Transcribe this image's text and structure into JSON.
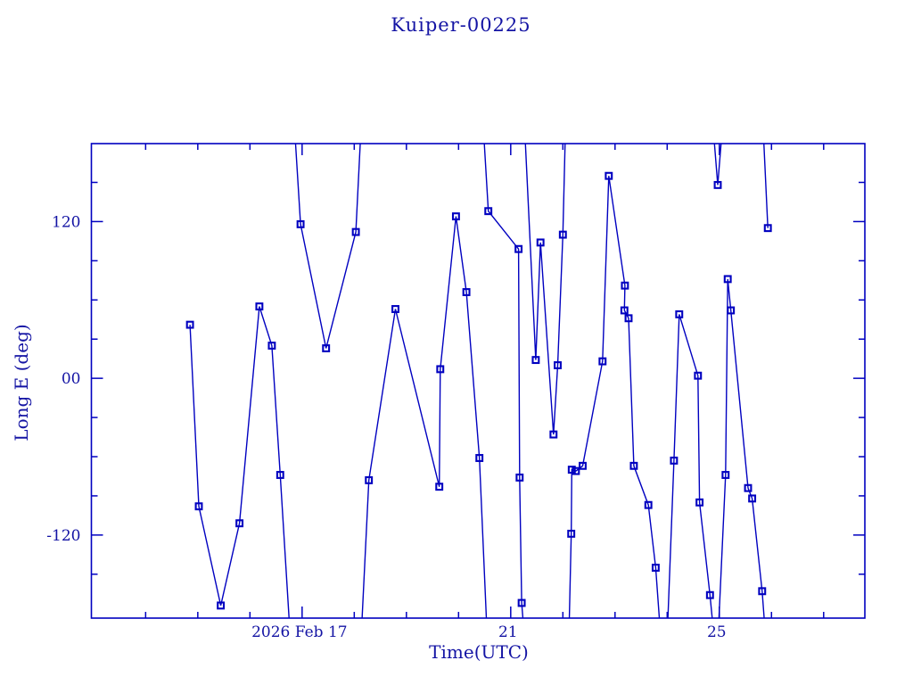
{
  "page": {
    "background": "#ffffff",
    "plot_color": "#0000C0",
    "text_color": "#1414A4"
  },
  "chart_data": {
    "type": "line",
    "title": "Kuiper-00225",
    "xlabel": "Time(UTC)",
    "ylabel": "Long E (deg)",
    "marker": "open-square",
    "grid": false,
    "legend": "none",
    "xlim": [
      12.96,
      27.79
    ],
    "ylim": [
      -183.6,
      179.7
    ],
    "x_unit": "day of 2026 Feb (UTC)",
    "y_unit": "degrees",
    "xticks_major": [
      {
        "day": 17,
        "label": "2026 Feb 17"
      },
      {
        "day": 21,
        "label": "21"
      },
      {
        "day": 25,
        "label": "25"
      }
    ],
    "xticks_minor": [
      14,
      15,
      16,
      18,
      19,
      20,
      22,
      23,
      24,
      26,
      27
    ],
    "yticks_major": [
      {
        "value": 120,
        "label": "120"
      },
      {
        "value": 0,
        "label": "00"
      },
      {
        "value": -120,
        "label": "-120"
      }
    ],
    "yticks_minor": [
      150,
      90,
      60,
      30,
      -30,
      -60,
      -90,
      -150
    ],
    "wrap_note": "points with |value|>180 are off-scale wrap points; lines clip at frame, no marker drawn",
    "series": [
      {
        "name": "segment-1",
        "points": [
          [
            14.85,
            41
          ],
          [
            15.02,
            -98
          ],
          [
            15.44,
            -174
          ],
          [
            15.8,
            -111
          ],
          [
            16.18,
            55
          ],
          [
            16.42,
            25
          ],
          [
            16.58,
            -74
          ],
          [
            16.79,
            -209
          ]
        ]
      },
      {
        "name": "segment-2",
        "points": [
          [
            16.83,
            208
          ],
          [
            16.97,
            118
          ],
          [
            17.46,
            23
          ],
          [
            18.03,
            112
          ],
          [
            18.15,
            208
          ]
        ]
      },
      {
        "name": "segment-3",
        "points": [
          [
            18.11,
            -216
          ],
          [
            18.28,
            -78
          ],
          [
            18.79,
            53
          ],
          [
            19.63,
            -83
          ],
          [
            19.65,
            7
          ],
          [
            19.95,
            124
          ],
          [
            20.15,
            66
          ],
          [
            20.4,
            -61
          ],
          [
            20.56,
            -209
          ]
        ]
      },
      {
        "name": "segment-4",
        "points": [
          [
            20.44,
            215
          ],
          [
            20.57,
            128
          ],
          [
            21.15,
            99
          ],
          [
            21.17,
            -76
          ],
          [
            21.21,
            -172
          ],
          [
            21.27,
            -202
          ]
        ]
      },
      {
        "name": "segment-5",
        "points": [
          [
            21.24,
            215
          ],
          [
            21.48,
            14
          ],
          [
            21.57,
            104
          ],
          [
            21.82,
            -43
          ],
          [
            21.9,
            10
          ],
          [
            22.0,
            110
          ],
          [
            22.06,
            208
          ]
        ]
      },
      {
        "name": "segment-6",
        "points": [
          [
            22.11,
            -209
          ],
          [
            22.16,
            -119
          ],
          [
            22.17,
            -70
          ],
          [
            22.25,
            -71
          ],
          [
            22.38,
            -67
          ],
          [
            22.76,
            13
          ],
          [
            22.88,
            155
          ],
          [
            23.19,
            71
          ],
          [
            23.18,
            52
          ],
          [
            23.26,
            46
          ],
          [
            23.36,
            -67
          ],
          [
            23.64,
            -97
          ],
          [
            23.78,
            -145
          ],
          [
            23.87,
            -195
          ]
        ]
      },
      {
        "name": "segment-7",
        "points": [
          [
            23.99,
            -209
          ],
          [
            24.13,
            -63
          ],
          [
            24.23,
            49
          ],
          [
            24.59,
            2
          ],
          [
            24.62,
            -95
          ],
          [
            24.82,
            -166
          ],
          [
            24.89,
            -195
          ]
        ]
      },
      {
        "name": "segment-8",
        "points": [
          [
            24.85,
            208
          ],
          [
            24.97,
            148
          ],
          [
            25.09,
            208
          ]
        ]
      },
      {
        "name": "segment-9",
        "points": [
          [
            24.98,
            -195
          ],
          [
            25.12,
            -74
          ],
          [
            25.16,
            76
          ],
          [
            25.22,
            52
          ],
          [
            25.55,
            -84
          ],
          [
            25.63,
            -92
          ],
          [
            25.82,
            -163
          ],
          [
            25.88,
            -195
          ]
        ]
      },
      {
        "name": "segment-10",
        "points": [
          [
            25.82,
            208
          ],
          [
            25.93,
            115
          ]
        ]
      }
    ]
  }
}
